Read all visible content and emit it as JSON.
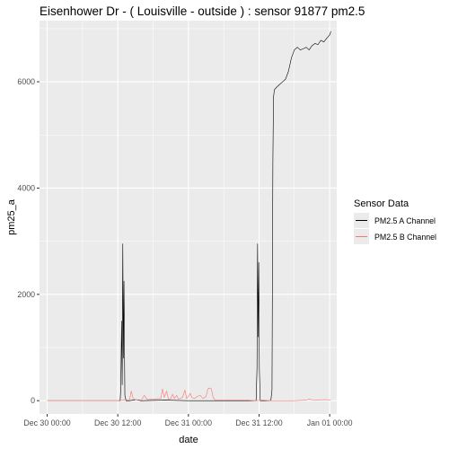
{
  "chart_data": {
    "type": "line",
    "title": "Eisenhower Dr - ( Louisville - outside ) : sensor 91877 pm2.5",
    "xlabel": "date",
    "ylabel": "pm25_a",
    "xlim_hours": [
      -1.3,
      49.2
    ],
    "ylim": [
      -250,
      7150
    ],
    "x_ticks": [
      {
        "label": "Dec 30 00:00",
        "hour": 0
      },
      {
        "label": "Dec 30 12:00",
        "hour": 12
      },
      {
        "label": "Dec 31 00:00",
        "hour": 24
      },
      {
        "label": "Dec 31 12:00",
        "hour": 36
      },
      {
        "label": "Jan 01 00:00",
        "hour": 48
      }
    ],
    "y_ticks": [
      {
        "label": "0",
        "value": 0
      },
      {
        "label": "2000",
        "value": 2000
      },
      {
        "label": "4000",
        "value": 4000
      },
      {
        "label": "6000",
        "value": 6000
      }
    ],
    "legend": {
      "title": "Sensor Data",
      "placement": "right",
      "entries": [
        "PM2.5 A Channel",
        "PM2.5 B Channel"
      ]
    },
    "series": [
      {
        "name": "PM2.5 A Channel",
        "color": "#000000",
        "points": [
          [
            0,
            0
          ],
          [
            12.4,
            0
          ],
          [
            12.5,
            200
          ],
          [
            12.65,
            1500
          ],
          [
            12.75,
            300
          ],
          [
            12.85,
            2950
          ],
          [
            12.95,
            800
          ],
          [
            13.05,
            2250
          ],
          [
            13.2,
            100
          ],
          [
            13.4,
            0
          ],
          [
            14,
            0
          ],
          [
            15,
            20
          ],
          [
            16,
            0
          ],
          [
            20,
            10
          ],
          [
            24,
            0
          ],
          [
            30,
            0
          ],
          [
            34,
            0
          ],
          [
            35.5,
            0
          ],
          [
            35.65,
            600
          ],
          [
            35.75,
            2950
          ],
          [
            35.85,
            1200
          ],
          [
            35.95,
            2600
          ],
          [
            36.05,
            600
          ],
          [
            36.2,
            0
          ],
          [
            37,
            0
          ],
          [
            38,
            0
          ],
          [
            38.2,
            200
          ],
          [
            38.35,
            4500
          ],
          [
            38.45,
            5700
          ],
          [
            38.6,
            5850
          ],
          [
            39,
            5900
          ],
          [
            39.5,
            5950
          ],
          [
            40,
            6000
          ],
          [
            40.5,
            6050
          ],
          [
            41,
            6200
          ],
          [
            41.5,
            6450
          ],
          [
            42,
            6600
          ],
          [
            42.5,
            6650
          ],
          [
            43,
            6600
          ],
          [
            43.5,
            6620
          ],
          [
            44,
            6650
          ],
          [
            44.5,
            6600
          ],
          [
            45,
            6680
          ],
          [
            45.5,
            6720
          ],
          [
            46,
            6700
          ],
          [
            46.5,
            6780
          ],
          [
            47,
            6750
          ],
          [
            47.5,
            6820
          ],
          [
            48,
            6880
          ],
          [
            48.2,
            6950
          ]
        ]
      },
      {
        "name": "PM2.5 B Channel",
        "color": "#f8766d",
        "points": [
          [
            0,
            0
          ],
          [
            12,
            0
          ],
          [
            13,
            10
          ],
          [
            14,
            20
          ],
          [
            14.3,
            180
          ],
          [
            14.6,
            40
          ],
          [
            15,
            20
          ],
          [
            16,
            10
          ],
          [
            16.5,
            100
          ],
          [
            17,
            20
          ],
          [
            18,
            30
          ],
          [
            19.3,
            40
          ],
          [
            19.6,
            220
          ],
          [
            19.9,
            60
          ],
          [
            20.3,
            180
          ],
          [
            20.6,
            30
          ],
          [
            21,
            40
          ],
          [
            21.3,
            120
          ],
          [
            21.6,
            40
          ],
          [
            22,
            100
          ],
          [
            22.3,
            30
          ],
          [
            23,
            60
          ],
          [
            23.4,
            200
          ],
          [
            23.7,
            40
          ],
          [
            24,
            80
          ],
          [
            24.3,
            140
          ],
          [
            24.6,
            60
          ],
          [
            25,
            40
          ],
          [
            25.5,
            80
          ],
          [
            26,
            100
          ],
          [
            26.5,
            40
          ],
          [
            27,
            80
          ],
          [
            27.3,
            220
          ],
          [
            27.6,
            240
          ],
          [
            27.9,
            220
          ],
          [
            28.2,
            60
          ],
          [
            28.5,
            20
          ],
          [
            29,
            10
          ],
          [
            31,
            10
          ],
          [
            34,
            10
          ],
          [
            35.5,
            0
          ],
          [
            36.5,
            10
          ],
          [
            38,
            0
          ],
          [
            42,
            0
          ],
          [
            44,
            10
          ],
          [
            44.5,
            30
          ],
          [
            45,
            15
          ],
          [
            46,
            10
          ],
          [
            47,
            20
          ],
          [
            48,
            15
          ],
          [
            48.2,
            20
          ]
        ]
      }
    ]
  }
}
